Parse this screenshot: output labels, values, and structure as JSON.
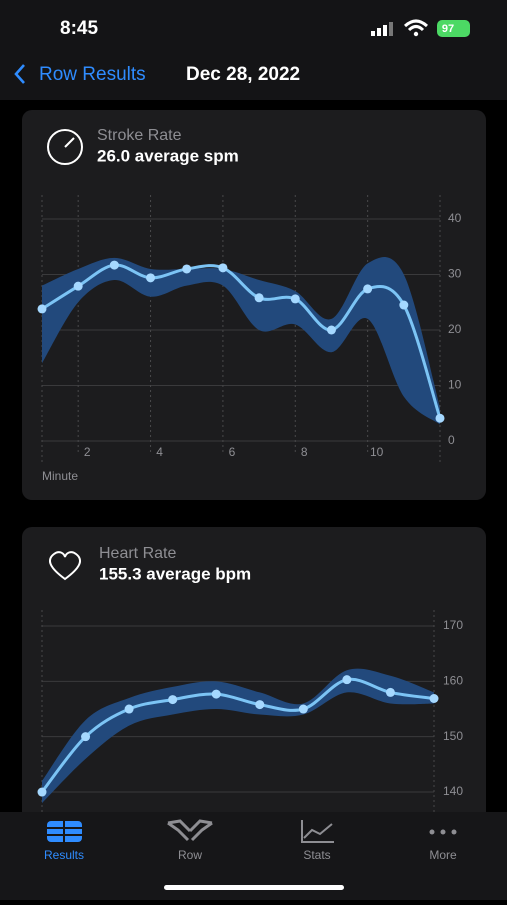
{
  "status_bar": {
    "time": "8:45",
    "battery": "97"
  },
  "nav": {
    "back": "Row Results",
    "title": "Dec 28, 2022"
  },
  "chart_data": [
    {
      "type": "line",
      "title": "Stroke Rate",
      "subtitle": "26.0 average spm",
      "xlabel": "Minute",
      "x": [
        1,
        2,
        3,
        4,
        5,
        6,
        7,
        8,
        9,
        10,
        11,
        12
      ],
      "values": [
        23.8,
        27.9,
        31.7,
        29.4,
        31.0,
        31.2,
        25.8,
        25.6,
        20.0,
        27.4,
        24.5,
        4.1
      ],
      "upper": [
        28,
        31,
        33,
        31,
        31,
        31,
        29,
        27,
        22,
        32,
        30,
        6
      ],
      "lower": [
        14,
        25,
        29,
        26,
        28,
        28,
        20,
        21,
        16,
        22,
        8,
        3
      ],
      "xlim": [
        1,
        12
      ],
      "xticks": [
        2,
        4,
        6,
        8,
        10
      ],
      "ylim": [
        0,
        40
      ],
      "yticks": [
        0,
        10,
        20,
        30,
        40
      ],
      "color": "#7cc4f5",
      "band_color": "#22497c",
      "grid": true
    },
    {
      "type": "line",
      "title": "Heart Rate",
      "subtitle": "155.3 average bpm",
      "x": [
        1,
        2,
        3,
        4,
        5,
        6,
        7,
        8,
        9,
        10
      ],
      "values": [
        140,
        150,
        155,
        156.7,
        157.7,
        155.8,
        155,
        160.3,
        158,
        156.9
      ],
      "upper": [
        142,
        153,
        157,
        159,
        160,
        158,
        156,
        162,
        161,
        158
      ],
      "lower": [
        138,
        146,
        152,
        154,
        155,
        154,
        154,
        158,
        156,
        156
      ],
      "xlim": [
        1,
        10
      ],
      "ylim": [
        135,
        170
      ],
      "yticks": [
        140,
        150,
        160,
        170
      ],
      "color": "#7cc4f5",
      "band_color": "#22497c",
      "grid": true
    }
  ],
  "tabs": [
    "Results",
    "Row",
    "Stats",
    "More"
  ]
}
